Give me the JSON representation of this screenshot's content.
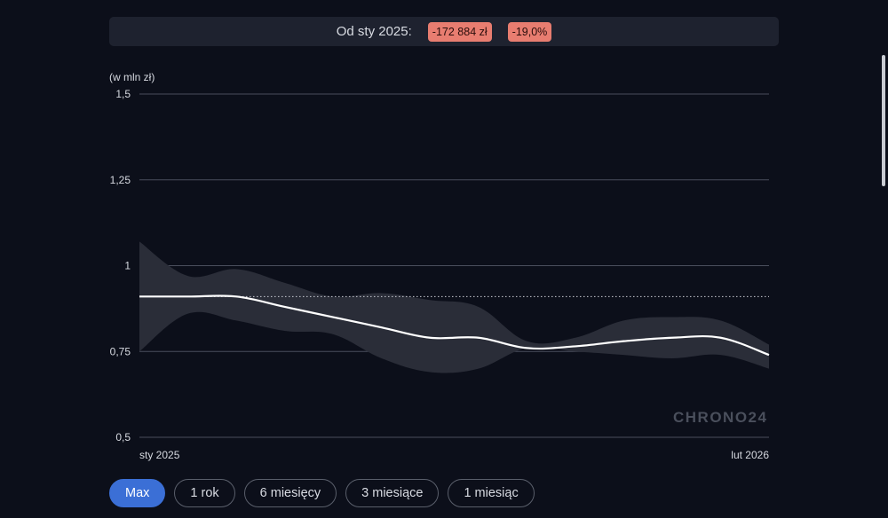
{
  "summary": {
    "label": "Od sty 2025:",
    "change_amount": "-172 884 zł",
    "change_percent": "-19,0%",
    "badge_color": "#e87d70"
  },
  "chart_data": {
    "type": "line",
    "unit_label": "(w mln zł)",
    "y_ticks": [
      "1,5",
      "1,25",
      "1",
      "0,75",
      "0,5"
    ],
    "y_tick_values": [
      1.5,
      1.25,
      1.0,
      0.75,
      0.5
    ],
    "ylim": [
      0.5,
      1.5
    ],
    "x_labels": [
      "sty 2025",
      "lut 2026"
    ],
    "x_range": [
      "2025-01",
      "2026-02"
    ],
    "reference_line": 0.91,
    "series": [
      {
        "x": [
          "2025-01",
          "2025-02",
          "2025-03",
          "2025-04",
          "2025-05",
          "2025-06",
          "2025-07",
          "2025-08",
          "2025-09",
          "2025-10",
          "2025-11",
          "2025-12",
          "2026-01",
          "2026-02"
        ],
        "values": [
          0.91,
          0.91,
          0.91,
          0.88,
          0.85,
          0.82,
          0.79,
          0.79,
          0.76,
          0.765,
          0.78,
          0.79,
          0.79,
          0.74
        ],
        "upper": [
          1.07,
          0.97,
          0.99,
          0.95,
          0.91,
          0.92,
          0.9,
          0.88,
          0.78,
          0.79,
          0.84,
          0.85,
          0.84,
          0.77
        ],
        "lower": [
          0.75,
          0.86,
          0.84,
          0.81,
          0.8,
          0.73,
          0.69,
          0.7,
          0.76,
          0.75,
          0.74,
          0.73,
          0.74,
          0.7
        ],
        "line_color": "#ffffff",
        "band_color": "#2a2d38"
      }
    ],
    "grid": true
  },
  "logo": {
    "text": "CHRONO24"
  },
  "range_buttons": [
    {
      "label": "Max",
      "active": true
    },
    {
      "label": "1 rok",
      "active": false
    },
    {
      "label": "6 miesięcy",
      "active": false
    },
    {
      "label": "3 miesiące",
      "active": false
    },
    {
      "label": "1 miesiąc",
      "active": false
    }
  ]
}
